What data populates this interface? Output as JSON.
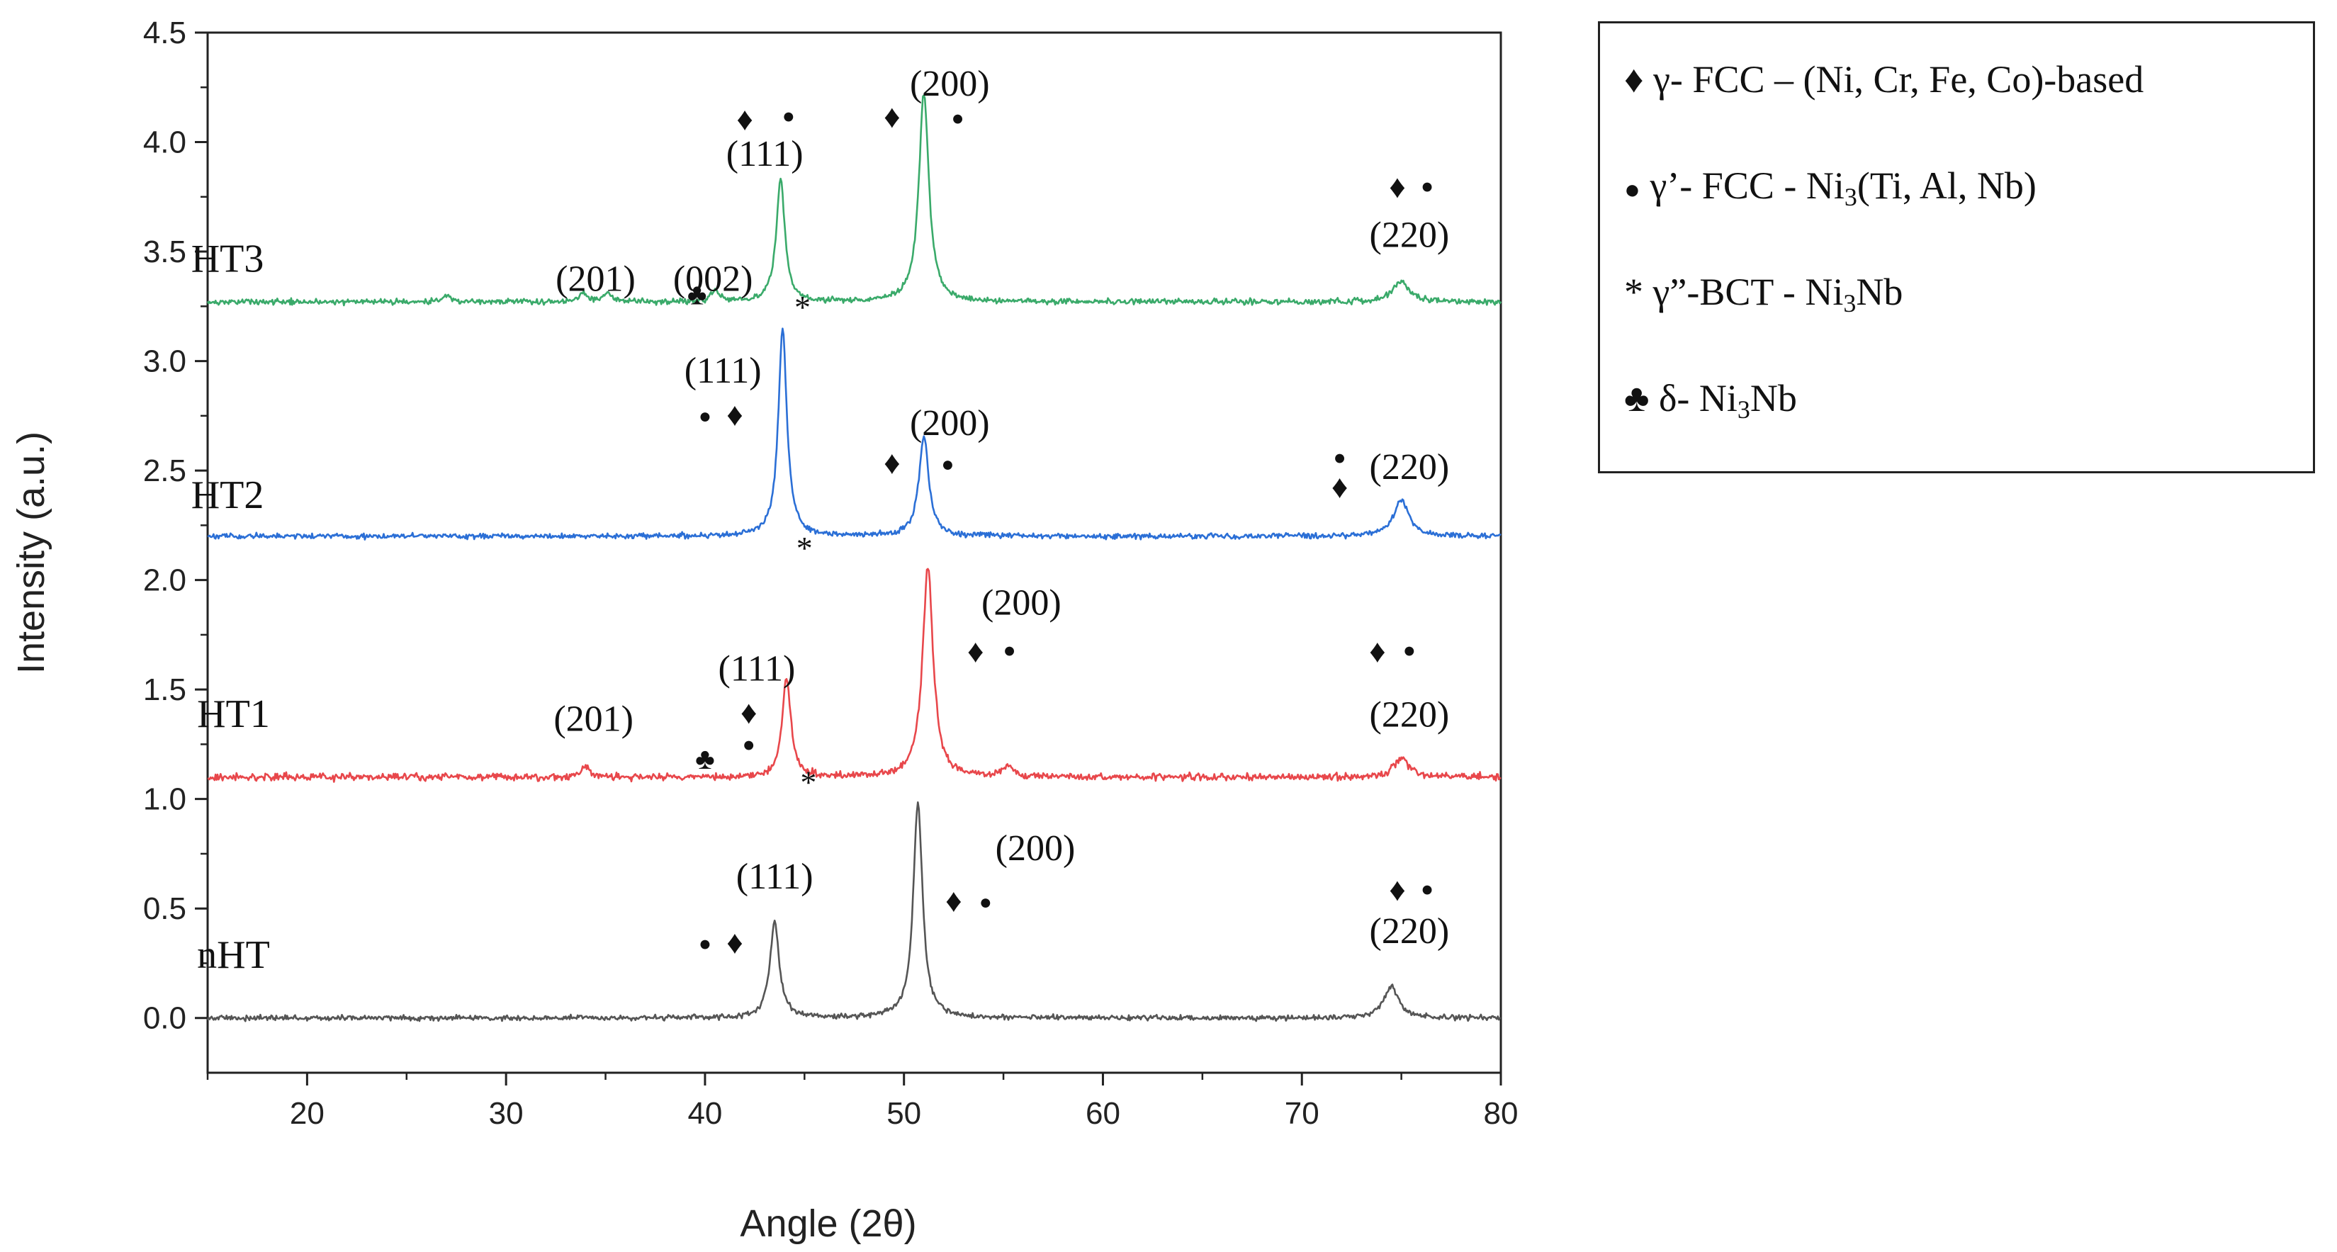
{
  "chart_data": {
    "type": "line",
    "title": "",
    "xlabel": "Angle (2θ)",
    "ylabel": "Intensity (a.u.)",
    "xlim": [
      15,
      80
    ],
    "ylim": [
      -0.25,
      4.5
    ],
    "xticks": [
      20,
      30,
      40,
      50,
      60,
      70,
      80
    ],
    "yticks": [
      0.0,
      0.5,
      1.0,
      1.5,
      2.0,
      2.5,
      3.0,
      3.5,
      4.0,
      4.5
    ],
    "ytick_labels": [
      "0.0",
      "0.5",
      "1.0",
      "1.5",
      "2.0",
      "2.5",
      "3.0",
      "3.5",
      "4.0",
      "4.5"
    ],
    "series": [
      {
        "name": "nHT",
        "color": "#555555",
        "baseline": 0.0,
        "noise": 0.012,
        "peaks": [
          {
            "x": 43.5,
            "h": 0.44,
            "w": 0.28
          },
          {
            "x": 50.7,
            "h": 0.98,
            "w": 0.28
          },
          {
            "x": 74.5,
            "h": 0.14,
            "w": 0.45
          }
        ]
      },
      {
        "name": "HT1",
        "color": "#e8474b",
        "baseline": 1.1,
        "noise": 0.016,
        "peaks": [
          {
            "x": 34.0,
            "h": 0.05,
            "w": 0.25
          },
          {
            "x": 44.1,
            "h": 0.45,
            "w": 0.26
          },
          {
            "x": 51.2,
            "h": 0.96,
            "w": 0.32
          },
          {
            "x": 55.2,
            "h": 0.04,
            "w": 0.3
          },
          {
            "x": 75.0,
            "h": 0.09,
            "w": 0.45
          }
        ]
      },
      {
        "name": "HT2",
        "color": "#2b6fd6",
        "baseline": 2.2,
        "noise": 0.012,
        "peaks": [
          {
            "x": 43.9,
            "h": 0.95,
            "w": 0.26
          },
          {
            "x": 51.0,
            "h": 0.45,
            "w": 0.3
          },
          {
            "x": 75.0,
            "h": 0.17,
            "w": 0.45
          }
        ]
      },
      {
        "name": "HT3",
        "color": "#3aaa6a",
        "baseline": 3.27,
        "noise": 0.013,
        "peaks": [
          {
            "x": 27.0,
            "h": 0.03,
            "w": 0.3
          },
          {
            "x": 33.9,
            "h": 0.04,
            "w": 0.25
          },
          {
            "x": 35.1,
            "h": 0.04,
            "w": 0.25
          },
          {
            "x": 40.5,
            "h": 0.05,
            "w": 0.25
          },
          {
            "x": 43.8,
            "h": 0.56,
            "w": 0.26
          },
          {
            "x": 51.0,
            "h": 0.96,
            "w": 0.3
          },
          {
            "x": 75.0,
            "h": 0.1,
            "w": 0.45
          }
        ]
      }
    ],
    "annotations": [
      {
        "text": "HT3",
        "x": 16.0,
        "y": 3.45,
        "size": 56
      },
      {
        "text": "HT2",
        "x": 16.0,
        "y": 2.37,
        "size": 56
      },
      {
        "text": "HT1",
        "x": 16.3,
        "y": 1.37,
        "size": 56
      },
      {
        "text": "nHT",
        "x": 16.3,
        "y": 0.27,
        "size": 56
      },
      {
        "text": "(200)",
        "x": 52.3,
        "y": 4.25,
        "size": 52
      },
      {
        "text": "♦",
        "x": 49.4,
        "y": 4.1,
        "size": 46
      },
      {
        "text": "●",
        "x": 52.7,
        "y": 4.1,
        "size": 30
      },
      {
        "text": "♦",
        "x": 42.0,
        "y": 4.09,
        "size": 46
      },
      {
        "text": "●",
        "x": 44.2,
        "y": 4.11,
        "size": 30
      },
      {
        "text": "(111)",
        "x": 43.0,
        "y": 3.93,
        "size": 52
      },
      {
        "text": "(201)",
        "x": 34.5,
        "y": 3.36,
        "size": 52
      },
      {
        "text": "(002)",
        "x": 40.4,
        "y": 3.36,
        "size": 52
      },
      {
        "text": "♣",
        "x": 39.6,
        "y": 3.29,
        "size": 42
      },
      {
        "text": "*",
        "x": 44.9,
        "y": 3.23,
        "size": 46
      },
      {
        "text": "♦",
        "x": 74.8,
        "y": 3.78,
        "size": 46
      },
      {
        "text": "●",
        "x": 76.3,
        "y": 3.79,
        "size": 30
      },
      {
        "text": "(220)",
        "x": 75.4,
        "y": 3.56,
        "size": 52
      },
      {
        "text": "(111)",
        "x": 40.9,
        "y": 2.94,
        "size": 52
      },
      {
        "text": "●",
        "x": 40.0,
        "y": 2.74,
        "size": 30
      },
      {
        "text": "♦",
        "x": 41.5,
        "y": 2.74,
        "size": 46
      },
      {
        "text": "(200)",
        "x": 52.3,
        "y": 2.7,
        "size": 52
      },
      {
        "text": "♦",
        "x": 49.4,
        "y": 2.52,
        "size": 46
      },
      {
        "text": "●",
        "x": 52.2,
        "y": 2.52,
        "size": 30
      },
      {
        "text": "*",
        "x": 45.0,
        "y": 2.13,
        "size": 46
      },
      {
        "text": "●",
        "x": 71.9,
        "y": 2.55,
        "size": 30
      },
      {
        "text": "♦",
        "x": 71.9,
        "y": 2.41,
        "size": 46
      },
      {
        "text": "(220)",
        "x": 75.4,
        "y": 2.5,
        "size": 52
      },
      {
        "text": "(200)",
        "x": 55.9,
        "y": 1.88,
        "size": 52
      },
      {
        "text": "♦",
        "x": 53.6,
        "y": 1.66,
        "size": 46
      },
      {
        "text": "●",
        "x": 55.3,
        "y": 1.67,
        "size": 30
      },
      {
        "text": "(111)",
        "x": 42.6,
        "y": 1.58,
        "size": 52
      },
      {
        "text": "♦",
        "x": 42.2,
        "y": 1.38,
        "size": 46
      },
      {
        "text": "●",
        "x": 42.2,
        "y": 1.24,
        "size": 30
      },
      {
        "text": "(201)",
        "x": 34.4,
        "y": 1.35,
        "size": 52
      },
      {
        "text": "♣",
        "x": 40.0,
        "y": 1.17,
        "size": 42
      },
      {
        "text": "*",
        "x": 45.2,
        "y": 1.06,
        "size": 46
      },
      {
        "text": "♦",
        "x": 73.8,
        "y": 1.66,
        "size": 46
      },
      {
        "text": "●",
        "x": 75.4,
        "y": 1.67,
        "size": 30
      },
      {
        "text": "(220)",
        "x": 75.4,
        "y": 1.37,
        "size": 52
      },
      {
        "text": "(200)",
        "x": 56.6,
        "y": 0.76,
        "size": 52
      },
      {
        "text": "♦",
        "x": 52.5,
        "y": 0.52,
        "size": 46
      },
      {
        "text": "●",
        "x": 54.1,
        "y": 0.52,
        "size": 30
      },
      {
        "text": "(111)",
        "x": 43.5,
        "y": 0.63,
        "size": 52
      },
      {
        "text": "●",
        "x": 40.0,
        "y": 0.33,
        "size": 30
      },
      {
        "text": "♦",
        "x": 41.5,
        "y": 0.33,
        "size": 46
      },
      {
        "text": "♦",
        "x": 74.8,
        "y": 0.57,
        "size": 46
      },
      {
        "text": "●",
        "x": 76.3,
        "y": 0.58,
        "size": 30
      },
      {
        "text": "(220)",
        "x": 75.4,
        "y": 0.38,
        "size": 52
      }
    ]
  },
  "legend": {
    "items": [
      {
        "symbol": "♦",
        "text": "γ- FCC – (Ni, Cr, Fe, Co)-based",
        "sub": "",
        "after": ""
      },
      {
        "symbol": "●",
        "text": "γ’- FCC - Ni",
        "sub": "3",
        "after": "(Ti, Al, Nb)"
      },
      {
        "symbol": "*",
        "text": "γ”-BCT - Ni",
        "sub": "3",
        "after": "Nb"
      },
      {
        "symbol": "♣",
        "text": "δ- Ni",
        "sub": "3",
        "after": "Nb"
      }
    ]
  }
}
